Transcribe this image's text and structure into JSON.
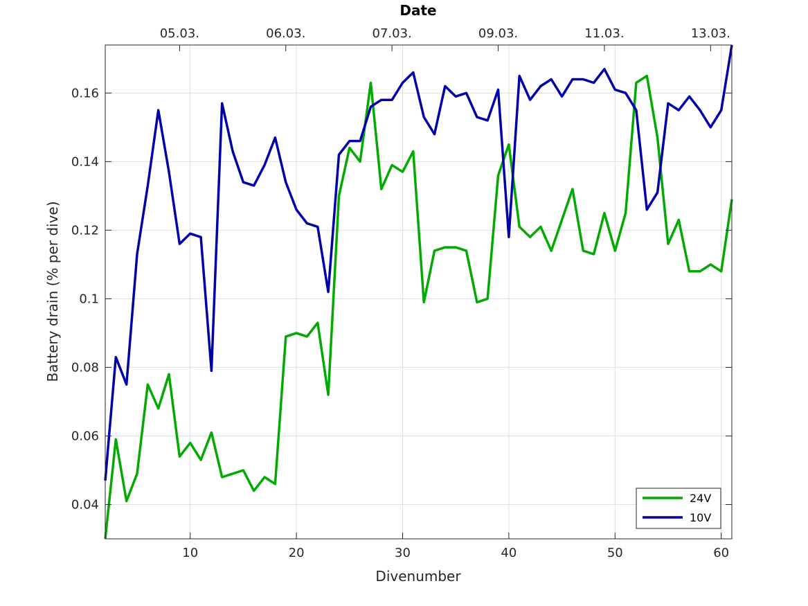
{
  "chart_data": {
    "type": "line",
    "xlabel": "Divenumber",
    "ylabel": "Battery drain (% per dive)",
    "top_axis_title": "Date",
    "top_ticks": [
      {
        "x": 9,
        "label": "05.03."
      },
      {
        "x": 19,
        "label": "06.03."
      },
      {
        "x": 29,
        "label": "07.03."
      },
      {
        "x": 39,
        "label": "09.03."
      },
      {
        "x": 49,
        "label": "11.03."
      },
      {
        "x": 59,
        "label": "13.03."
      }
    ],
    "xlim": [
      2,
      61
    ],
    "ylim": [
      0.03,
      0.174
    ],
    "xticks": [
      10,
      20,
      30,
      40,
      50,
      60
    ],
    "xtick_labels": [
      "10",
      "20",
      "30",
      "40",
      "50",
      "60"
    ],
    "yticks": [
      0.04,
      0.06,
      0.08,
      0.1,
      0.12,
      0.14,
      0.16
    ],
    "ytick_labels": [
      "0.04",
      "0.06",
      "0.08",
      "0.1",
      "0.12",
      "0.14",
      "0.16"
    ],
    "grid": true,
    "legend_position": "bottom-right",
    "x": [
      2,
      3,
      4,
      5,
      6,
      7,
      8,
      9,
      10,
      11,
      12,
      13,
      14,
      15,
      16,
      17,
      18,
      19,
      20,
      21,
      22,
      23,
      24,
      25,
      26,
      27,
      28,
      29,
      30,
      31,
      32,
      33,
      34,
      35,
      36,
      37,
      38,
      39,
      40,
      41,
      42,
      43,
      44,
      45,
      46,
      47,
      48,
      49,
      50,
      51,
      52,
      53,
      54,
      55,
      56,
      57,
      58,
      59,
      60,
      61
    ],
    "series": [
      {
        "name": "24V",
        "color": "#00aa00",
        "values": [
          0.03,
          0.059,
          0.041,
          0.049,
          0.075,
          0.068,
          0.078,
          0.054,
          0.058,
          0.053,
          0.061,
          0.048,
          0.049,
          0.05,
          0.044,
          0.048,
          0.046,
          0.089,
          0.09,
          0.089,
          0.093,
          0.072,
          0.13,
          0.144,
          0.14,
          0.163,
          0.132,
          0.139,
          0.137,
          0.143,
          0.099,
          0.114,
          0.115,
          0.115,
          0.114,
          0.099,
          0.1,
          0.136,
          0.145,
          0.121,
          0.118,
          0.121,
          0.114,
          0.123,
          0.132,
          0.114,
          0.113,
          0.125,
          0.114,
          0.125,
          0.163,
          0.165,
          0.147,
          0.116,
          0.123,
          0.108,
          0.108,
          0.11,
          0.108,
          0.129
        ]
      },
      {
        "name": "10V",
        "color": "#0000aa",
        "values": [
          0.047,
          0.083,
          0.075,
          0.113,
          0.133,
          0.155,
          0.137,
          0.116,
          0.119,
          0.118,
          0.079,
          0.157,
          0.143,
          0.134,
          0.133,
          0.139,
          0.147,
          0.134,
          0.126,
          0.122,
          0.121,
          0.102,
          0.142,
          0.146,
          0.146,
          0.156,
          0.158,
          0.158,
          0.163,
          0.166,
          0.153,
          0.148,
          0.162,
          0.159,
          0.16,
          0.153,
          0.152,
          0.161,
          0.118,
          0.165,
          0.158,
          0.162,
          0.164,
          0.159,
          0.164,
          0.164,
          0.163,
          0.167,
          0.161,
          0.16,
          0.155,
          0.126,
          0.131,
          0.157,
          0.155,
          0.159,
          0.155,
          0.15,
          0.155,
          0.174
        ]
      }
    ]
  }
}
